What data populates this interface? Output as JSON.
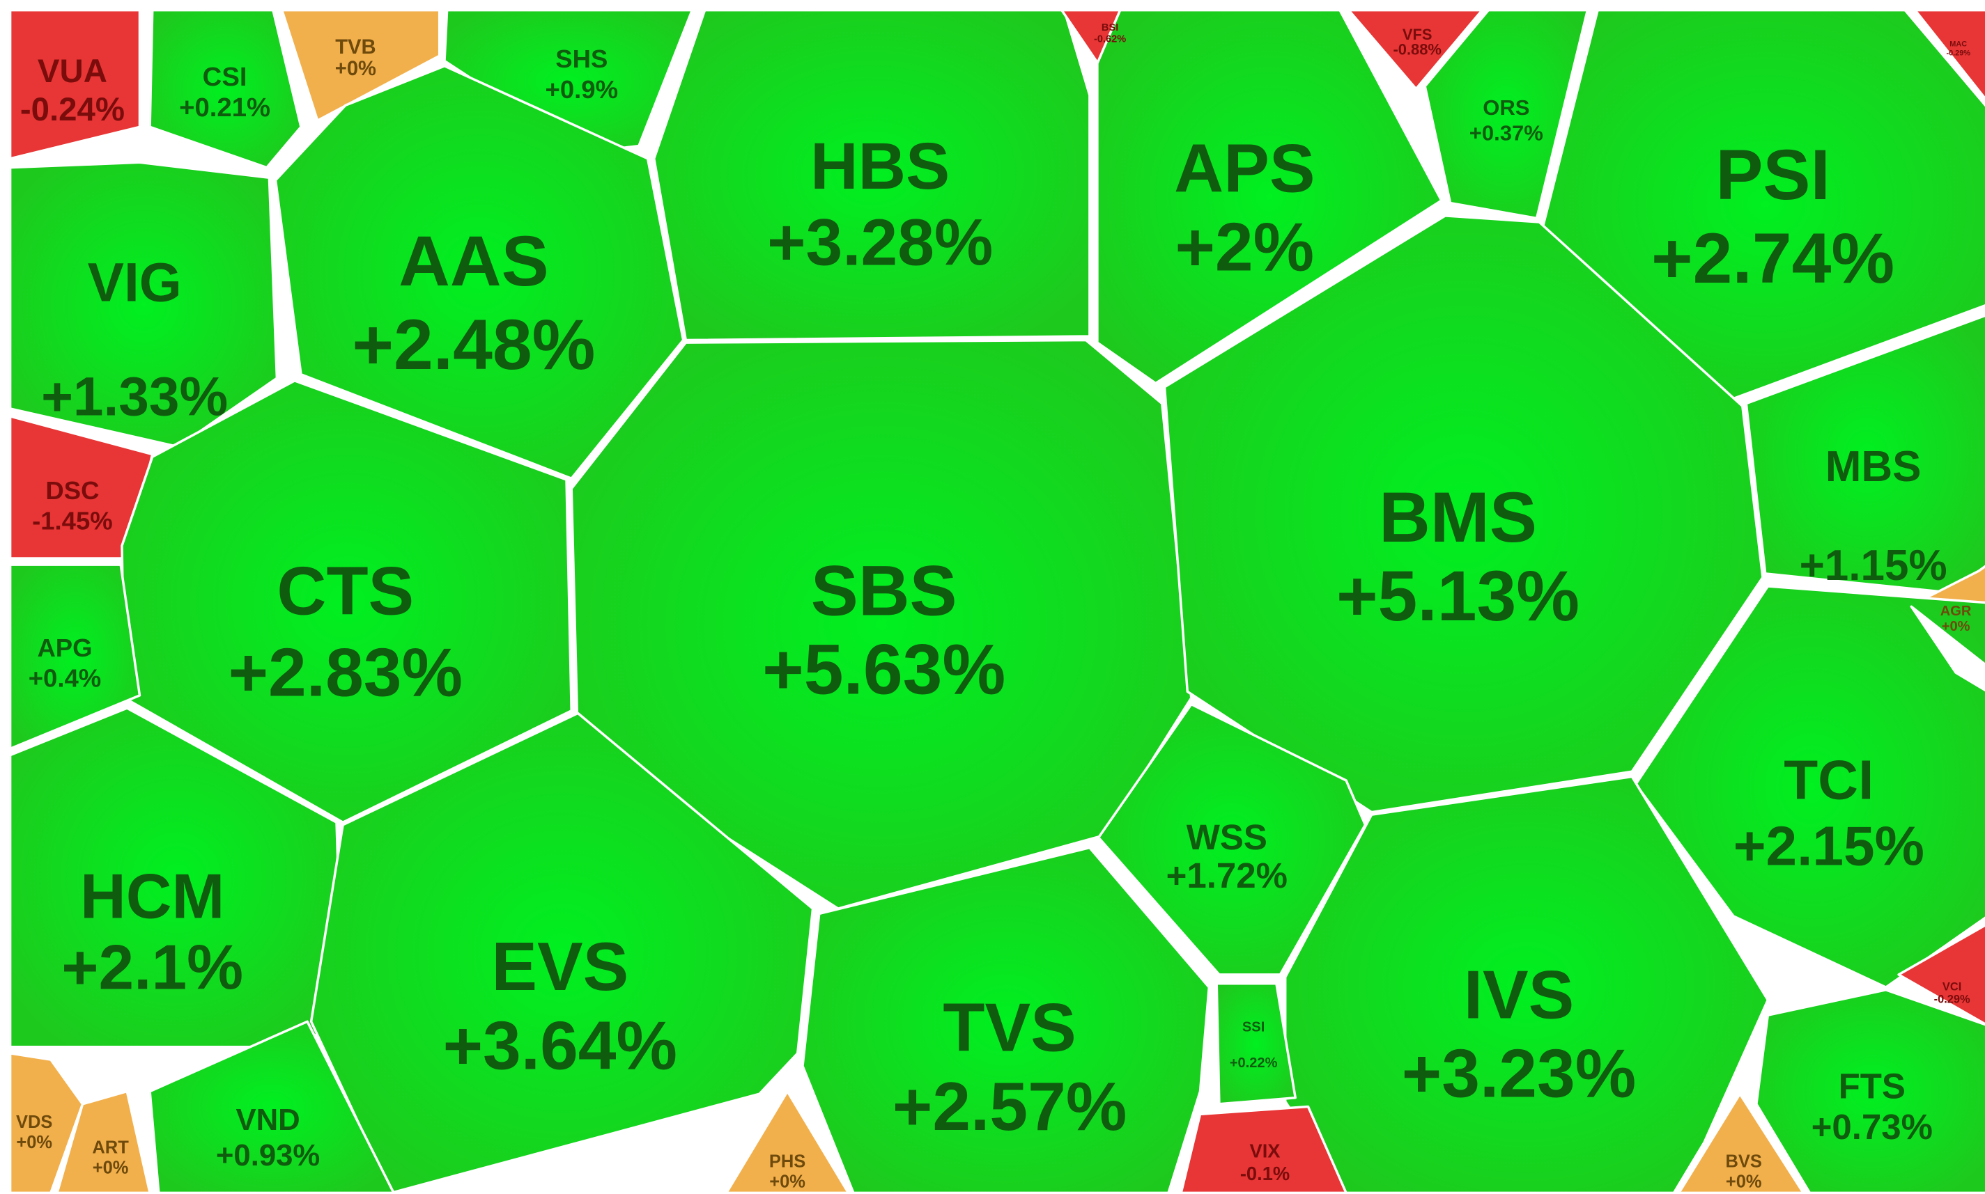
{
  "colors": {
    "up": "#1ec91e",
    "up_center": "#00f020",
    "up_text": "#0f5c0f",
    "down": "#e83535",
    "down_text": "#7a0c0c",
    "flat": "#f2b04c",
    "flat_text": "#6e4a0c",
    "border": "#ffffff"
  },
  "chart_data": {
    "type": "voronoi-treemap",
    "title": "",
    "cells": [
      {
        "ticker": "VUA",
        "change": "-0.24%",
        "value": -0.24
      },
      {
        "ticker": "CSI",
        "change": "+0.21%",
        "value": 0.21
      },
      {
        "ticker": "TVB",
        "change": "+0%",
        "value": 0
      },
      {
        "ticker": "SHS",
        "change": "+0.9%",
        "value": 0.9
      },
      {
        "ticker": "HBS",
        "change": "+3.28%",
        "value": 3.28
      },
      {
        "ticker": "BSI",
        "change": "-0.62%",
        "value": -0.62
      },
      {
        "ticker": "APS",
        "change": "+2%",
        "value": 2
      },
      {
        "ticker": "VFS",
        "change": "-0.88%",
        "value": -0.88
      },
      {
        "ticker": "ORS",
        "change": "+0.37%",
        "value": 0.37
      },
      {
        "ticker": "PSI",
        "change": "+2.74%",
        "value": 2.74
      },
      {
        "ticker": "MAC",
        "change": "-0.29%",
        "value": -0.29
      },
      {
        "ticker": "VIG",
        "change": "+1.33%",
        "value": 1.33
      },
      {
        "ticker": "AAS",
        "change": "+2.48%",
        "value": 2.48
      },
      {
        "ticker": "SBS",
        "change": "+5.63%",
        "value": 5.63
      },
      {
        "ticker": "BMS",
        "change": "+5.13%",
        "value": 5.13
      },
      {
        "ticker": "MBS",
        "change": "+1.15%",
        "value": 1.15
      },
      {
        "ticker": "DSC",
        "change": "-1.45%",
        "value": -1.45
      },
      {
        "ticker": "CTS",
        "change": "+2.83%",
        "value": 2.83
      },
      {
        "ticker": "AGR",
        "change": "+0%",
        "value": 0
      },
      {
        "ticker": "APG",
        "change": "+0.4%",
        "value": 0.4
      },
      {
        "ticker": "TCI",
        "change": "+2.15%",
        "value": 2.15
      },
      {
        "ticker": "WSS",
        "change": "+1.72%",
        "value": 1.72
      },
      {
        "ticker": "HCM",
        "change": "+2.1%",
        "value": 2.1
      },
      {
        "ticker": "EVS",
        "change": "+3.64%",
        "value": 3.64
      },
      {
        "ticker": "TVS",
        "change": "+2.57%",
        "value": 2.57
      },
      {
        "ticker": "IVS",
        "change": "+3.23%",
        "value": 3.23
      },
      {
        "ticker": "VCI",
        "change": "-0.29%",
        "value": -0.29
      },
      {
        "ticker": "SSI",
        "change": "+0.22%",
        "value": 0.22
      },
      {
        "ticker": "FTS",
        "change": "+0.73%",
        "value": 0.73
      },
      {
        "ticker": "VDS",
        "change": "+0%",
        "value": 0
      },
      {
        "ticker": "ART",
        "change": "+0%",
        "value": 0
      },
      {
        "ticker": "VND",
        "change": "+0.93%",
        "value": 0.93
      },
      {
        "ticker": "PHS",
        "change": "+0%",
        "value": 0
      },
      {
        "ticker": "VIX",
        "change": "-0.1%",
        "value": -0.1
      },
      {
        "ticker": "BVS",
        "change": "+0%",
        "value": 0
      }
    ]
  }
}
